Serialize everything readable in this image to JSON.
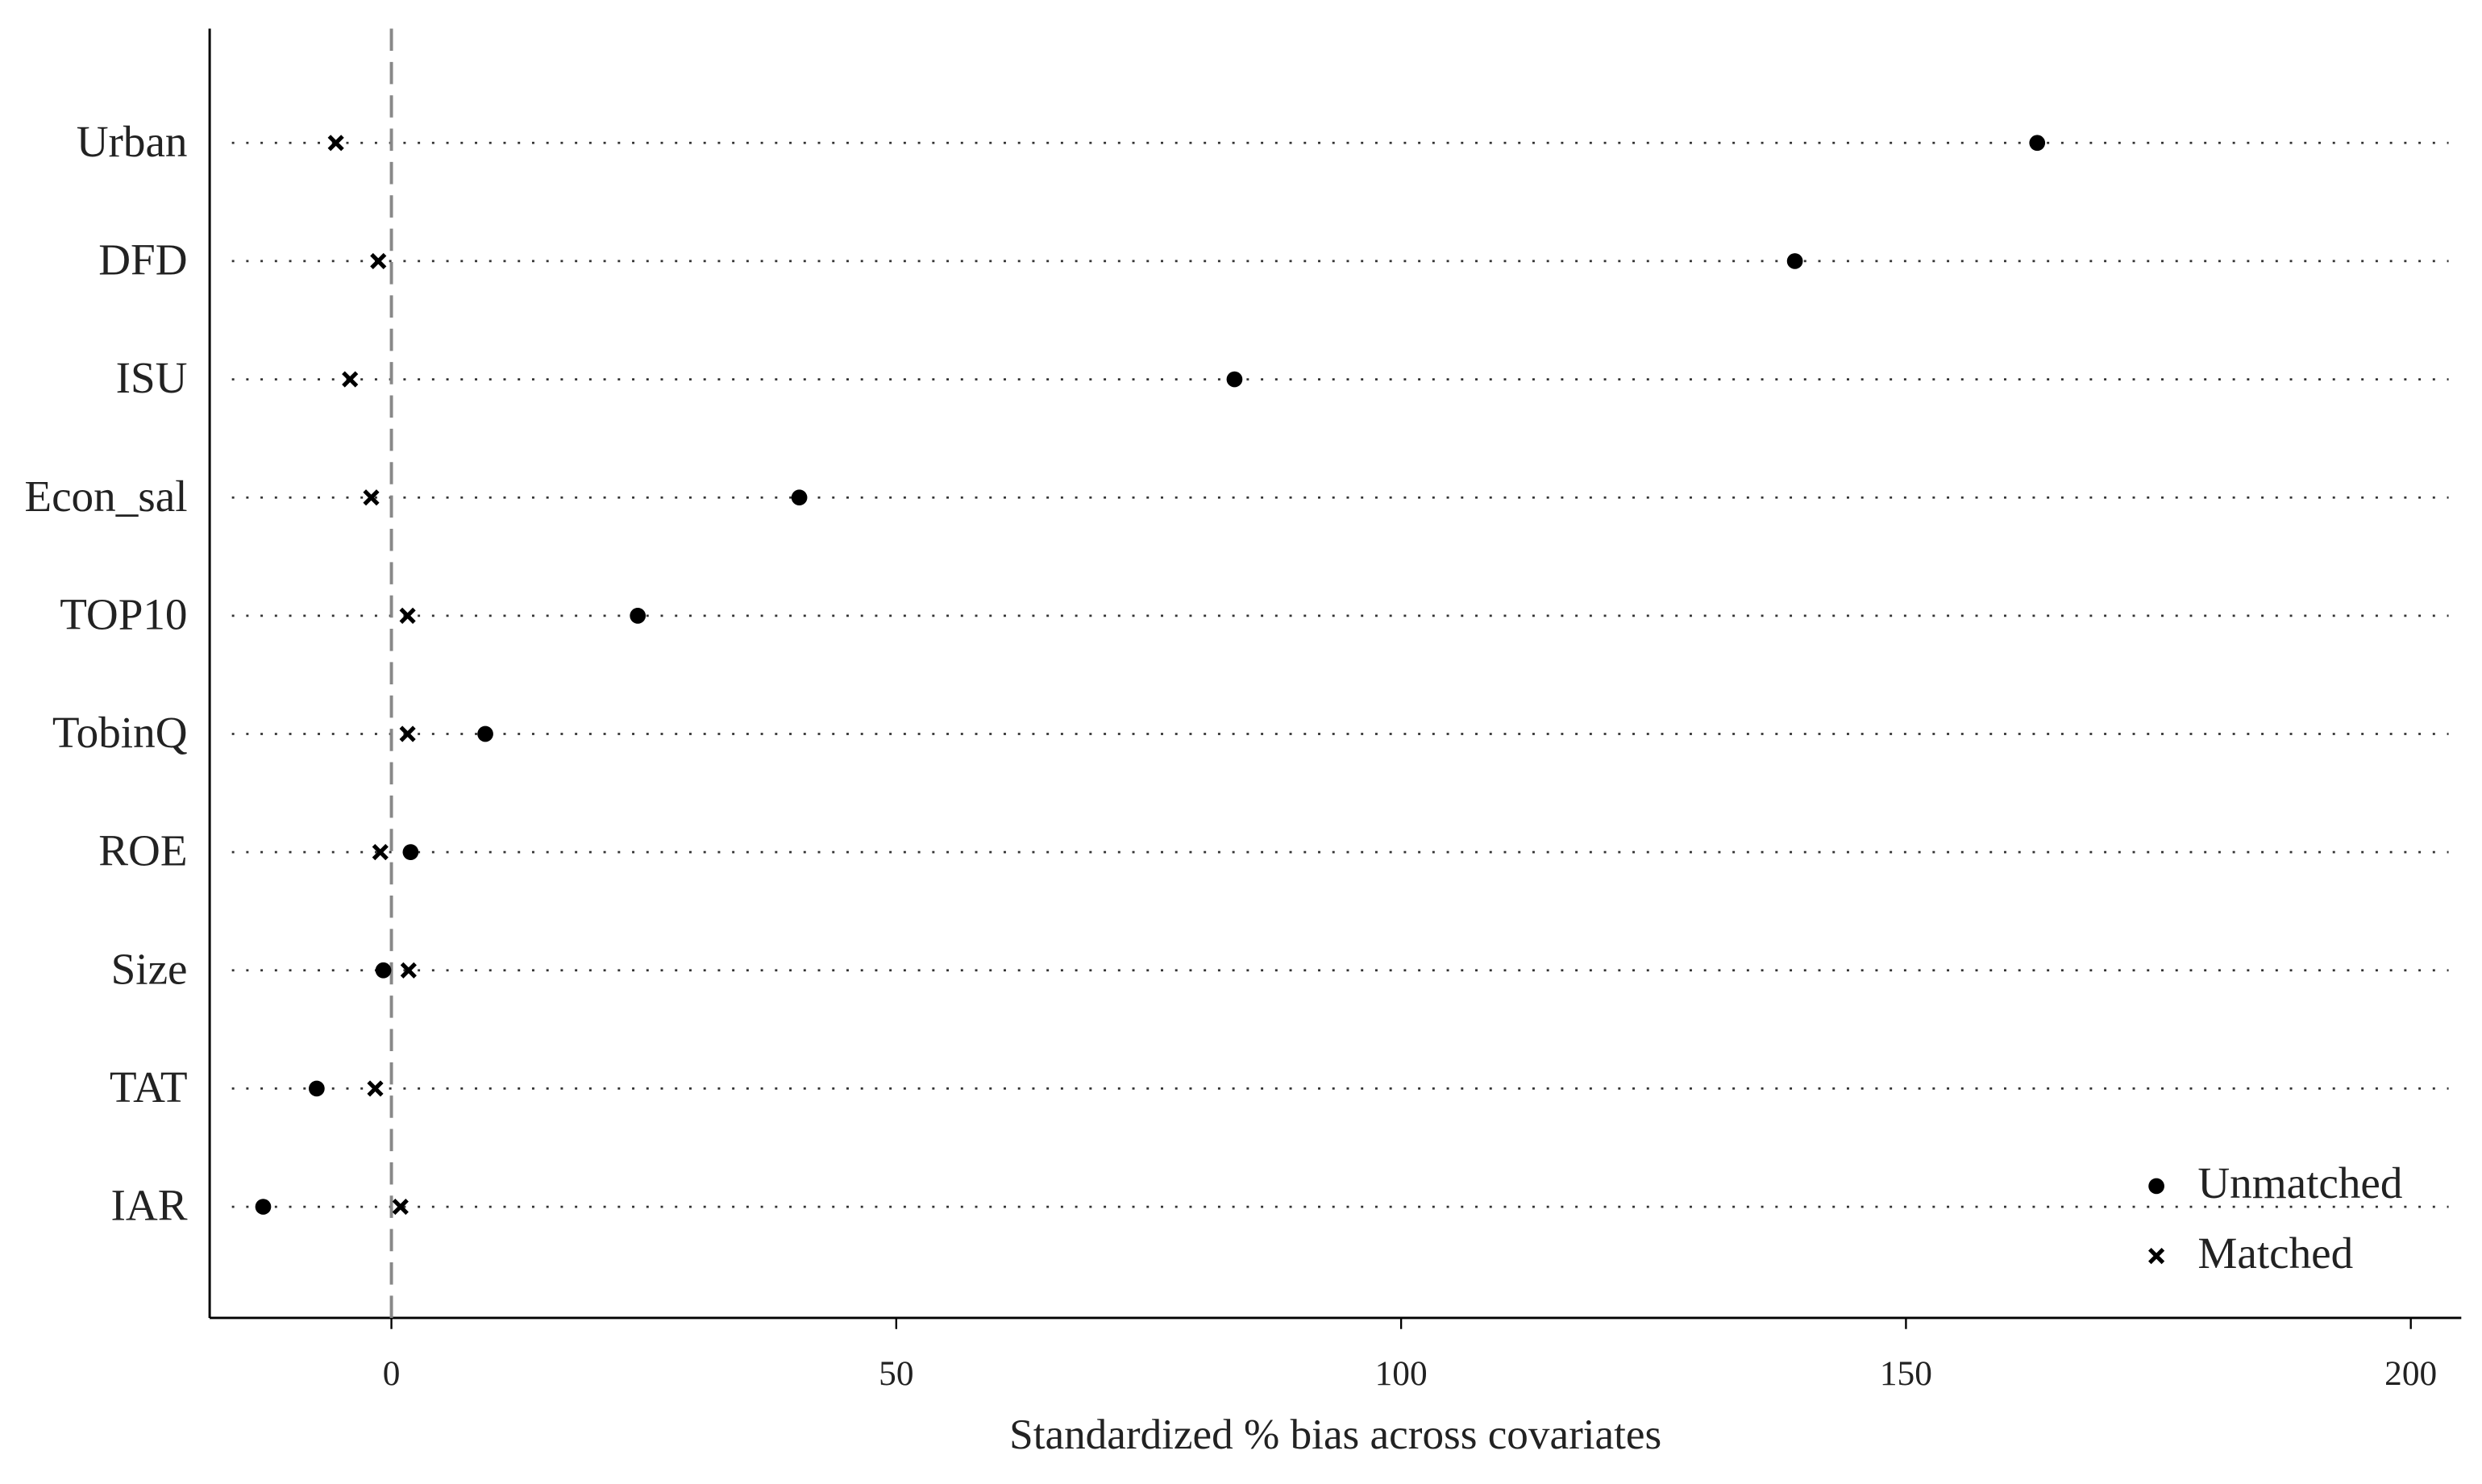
{
  "chart_data": {
    "type": "dot",
    "x_label": "Standardized % bias across covariates",
    "categories": [
      "Urban",
      "DFD",
      "ISU",
      "Econ_sal",
      "TOP10",
      "TobinQ",
      "ROE",
      "Size",
      "TAT",
      "IAR"
    ],
    "series": [
      {
        "name": "Unmatched",
        "color": "#000000",
        "marker": "circle",
        "values": [
          163,
          139,
          83.5,
          40.4,
          24.4,
          9.3,
          1.9,
          -0.8,
          -7.4,
          -12.7
        ]
      },
      {
        "name": "Matched",
        "color": "#000000",
        "marker": "x",
        "values": [
          -5.5,
          -1.3,
          -4.1,
          -2.0,
          1.6,
          1.6,
          -1.1,
          1.7,
          -1.6,
          0.9
        ]
      }
    ],
    "xlim": [
      -18,
      205
    ],
    "xticks": [
      0,
      50,
      100,
      150,
      200
    ],
    "reference_line": 0,
    "legend": "bottom-right"
  }
}
